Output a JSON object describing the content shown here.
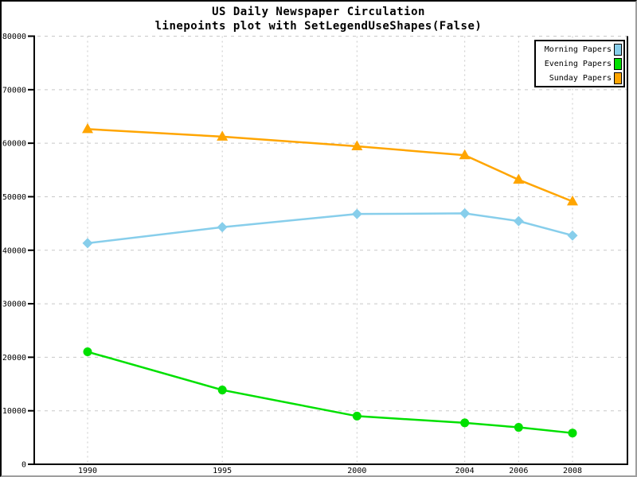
{
  "title": "US Daily Newspaper Circulation",
  "subtitle": "linepoints plot with SetLegendUseShapes(False)",
  "chart_data": {
    "type": "line",
    "variant": "linepoints",
    "x": [
      1990,
      1995,
      2000,
      2004,
      2006,
      2008
    ],
    "x_tick_labels": [
      "1990",
      "1995",
      "2000",
      "2004",
      "2006",
      "2008"
    ],
    "series": [
      {
        "name": "Morning Papers",
        "color": "#87CEEB",
        "marker": "diamond",
        "values": [
          41311,
          44310,
          46772,
          46887,
          45441,
          42757
        ]
      },
      {
        "name": "Evening Papers",
        "color": "#00E000",
        "marker": "circle",
        "values": [
          21017,
          13883,
          9000,
          7738,
          6900,
          5840
        ]
      },
      {
        "name": "Sunday Papers",
        "color": "#FFA500",
        "marker": "triangle",
        "values": [
          62635,
          61229,
          59421,
          57754,
          53179,
          49115
        ]
      }
    ],
    "ylim": [
      0,
      80000
    ],
    "y_ticks": [
      0,
      10000,
      20000,
      30000,
      40000,
      50000,
      60000,
      70000,
      80000
    ],
    "y_tick_labels": [
      "0",
      "10000",
      "20000",
      "30000",
      "40000",
      "50000",
      "60000",
      "70000",
      "80000"
    ],
    "grid": true,
    "gridline_color": "#c8c8c8",
    "axis_color": "#000000",
    "background_color": "#ffffff",
    "legend_position": "top-right",
    "legend_use_shapes": false,
    "legend_entries": [
      "Morning Papers",
      "Evening Papers",
      "Sunday Papers"
    ]
  }
}
